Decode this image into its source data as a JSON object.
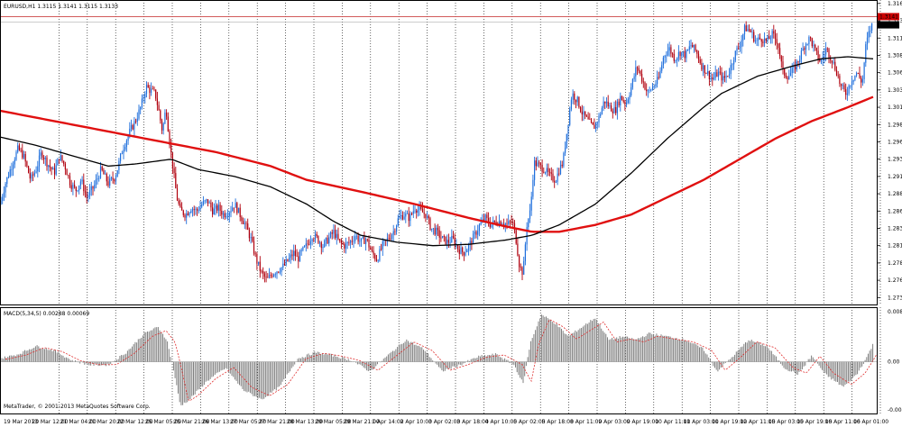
{
  "price_panel": {
    "title": "EURUSD,H1  1.3115 1.3141 1.3115 1.3133",
    "price_ticks": [
      "1.3160",
      "1.3135",
      "1.3110",
      "1.3085",
      "1.3060",
      "1.3035",
      "1.3010",
      "1.2985",
      "1.2960",
      "1.2935",
      "1.2910",
      "1.2885",
      "1.2860",
      "1.2835",
      "1.2810",
      "1.2785",
      "1.2760",
      "1.2735"
    ],
    "price_label_bid": "1.3141",
    "price_label_last": "1.3133",
    "colors": {
      "bull": "#1f6fdc",
      "bear": "#b0000e",
      "ma_fast": "#000000",
      "ma_slow": "#e01010",
      "hline": "#cc4444"
    }
  },
  "macd_panel": {
    "title": "MACD(5,34,5) 0.00288 0.00069",
    "ticks": [
      "0.00867",
      "0.00",
      "-0.00821"
    ],
    "colors": {
      "bars": "#808080",
      "signal": "#e03030"
    }
  },
  "time_axis": {
    "labels": [
      "19 Mar 2013",
      "20 Mar 12:00",
      "21 Mar 04:00",
      "21 Mar 20:00",
      "22 Mar 12:00",
      "25 Mar 05:00",
      "25 Mar 21:00",
      "26 Mar 13:00",
      "27 Mar 05:00",
      "27 Mar 21:00",
      "28 Mar 13:00",
      "29 Mar 05:00",
      "29 Mar 21:00",
      "1 Apr 14:00",
      "2 Apr 10:00",
      "3 Apr 02:00",
      "3 Apr 18:00",
      "4 Apr 10:00",
      "5 Apr 02:00",
      "5 Apr 18:00",
      "8 Apr 11:00",
      "9 Apr 03:00",
      "9 Apr 19:00",
      "10 Apr 11:00",
      "11 Apr 03:00",
      "11 Apr 19:00",
      "12 Apr 11:00",
      "15 Apr 03:00",
      "15 Apr 19:00",
      "16 Apr 11:00",
      "16 Apr 01:00"
    ]
  },
  "footer": {
    "copyright": "MetaTrader, © 2001-2013 MetaQuotes Software Corp."
  },
  "chart_data": [
    {
      "type": "candlestick",
      "symbol": "EURUSD",
      "timeframe": "H1",
      "ylim": [
        1.2725,
        1.3165
      ],
      "close_path": [
        [
          0,
          1.287
        ],
        [
          6,
          1.29
        ],
        [
          14,
          1.293
        ],
        [
          20,
          1.295
        ],
        [
          26,
          1.294
        ],
        [
          34,
          1.2905
        ],
        [
          40,
          1.292
        ],
        [
          46,
          1.2945
        ],
        [
          52,
          1.293
        ],
        [
          60,
          1.2915
        ],
        [
          66,
          1.294
        ],
        [
          72,
          1.2925
        ],
        [
          78,
          1.29
        ],
        [
          84,
          1.289
        ],
        [
          90,
          1.2905
        ],
        [
          96,
          1.288
        ],
        [
          104,
          1.2895
        ],
        [
          112,
          1.292
        ],
        [
          120,
          1.29
        ],
        [
          128,
          1.291
        ],
        [
          136,
          1.295
        ],
        [
          144,
          1.2975
        ],
        [
          150,
          1.299
        ],
        [
          156,
          1.301
        ],
        [
          162,
          1.304
        ],
        [
          166,
          1.3035
        ],
        [
          172,
          1.303
        ],
        [
          176,
          1.3005
        ],
        [
          180,
          1.2975
        ],
        [
          184,
          1.301
        ],
        [
          188,
          1.296
        ],
        [
          192,
          1.292
        ],
        [
          196,
          1.288
        ],
        [
          200,
          1.286
        ],
        [
          206,
          1.2855
        ],
        [
          212,
          1.2865
        ],
        [
          218,
          1.286
        ],
        [
          224,
          1.287
        ],
        [
          230,
          1.2875
        ],
        [
          236,
          1.286
        ],
        [
          242,
          1.2865
        ],
        [
          248,
          1.2855
        ],
        [
          254,
          1.286
        ],
        [
          260,
          1.287
        ],
        [
          266,
          1.2855
        ],
        [
          272,
          1.284
        ],
        [
          278,
          1.282
        ],
        [
          284,
          1.279
        ],
        [
          290,
          1.277
        ],
        [
          296,
          1.276
        ],
        [
          302,
          1.277
        ],
        [
          308,
          1.2775
        ],
        [
          314,
          1.278
        ],
        [
          320,
          1.279
        ],
        [
          326,
          1.28
        ],
        [
          330,
          1.279
        ],
        [
          334,
          1.28
        ],
        [
          340,
          1.281
        ],
        [
          346,
          1.2825
        ],
        [
          352,
          1.282
        ],
        [
          358,
          1.281
        ],
        [
          364,
          1.282
        ],
        [
          370,
          1.283
        ],
        [
          376,
          1.2815
        ],
        [
          382,
          1.281
        ],
        [
          388,
          1.2815
        ],
        [
          394,
          1.2825
        ],
        [
          400,
          1.2815
        ],
        [
          406,
          1.282
        ],
        [
          412,
          1.28
        ],
        [
          418,
          1.279
        ],
        [
          424,
          1.281
        ],
        [
          430,
          1.282
        ],
        [
          436,
          1.283
        ],
        [
          442,
          1.285
        ],
        [
          448,
          1.2855
        ],
        [
          454,
          1.285
        ],
        [
          460,
          1.2865
        ],
        [
          466,
          1.286
        ],
        [
          472,
          1.2855
        ],
        [
          478,
          1.2835
        ],
        [
          484,
          1.283
        ],
        [
          490,
          1.282
        ],
        [
          496,
          1.2815
        ],
        [
          502,
          1.282
        ],
        [
          508,
          1.2805
        ],
        [
          514,
          1.28
        ],
        [
          520,
          1.281
        ],
        [
          526,
          1.2825
        ],
        [
          532,
          1.284
        ],
        [
          538,
          1.285
        ],
        [
          544,
          1.284
        ],
        [
          550,
          1.2845
        ],
        [
          556,
          1.2845
        ],
        [
          562,
          1.284
        ],
        [
          568,
          1.2845
        ],
        [
          572,
          1.282
        ],
        [
          576,
          1.278
        ],
        [
          580,
          1.277
        ],
        [
          584,
          1.284
        ],
        [
          588,
          1.286
        ],
        [
          592,
          1.293
        ],
        [
          598,
          1.2925
        ],
        [
          604,
          1.292
        ],
        [
          610,
          1.291
        ],
        [
          616,
          1.2905
        ],
        [
          620,
          1.292
        ],
        [
          624,
          1.293
        ],
        [
          630,
          1.299
        ],
        [
          634,
          1.303
        ],
        [
          640,
          1.302
        ],
        [
          646,
          1.3
        ],
        [
          652,
          1.299
        ],
        [
          658,
          1.298
        ],
        [
          664,
          1.2995
        ],
        [
          670,
          1.302
        ],
        [
          676,
          1.301
        ],
        [
          682,
          1.3005
        ],
        [
          688,
          1.3025
        ],
        [
          694,
          1.3015
        ],
        [
          700,
          1.304
        ],
        [
          706,
          1.307
        ],
        [
          712,
          1.305
        ],
        [
          718,
          1.303
        ],
        [
          724,
          1.304
        ],
        [
          730,
          1.305
        ],
        [
          736,
          1.3085
        ],
        [
          742,
          1.3095
        ],
        [
          748,
          1.308
        ],
        [
          754,
          1.309
        ],
        [
          760,
          1.3085
        ],
        [
          766,
          1.31
        ],
        [
          772,
          1.309
        ],
        [
          778,
          1.307
        ],
        [
          784,
          1.306
        ],
        [
          790,
          1.305
        ],
        [
          796,
          1.306
        ],
        [
          802,
          1.305
        ],
        [
          808,
          1.306
        ],
        [
          814,
          1.3085
        ],
        [
          820,
          1.31
        ],
        [
          826,
          1.3125
        ],
        [
          832,
          1.312
        ],
        [
          838,
          1.3105
        ],
        [
          844,
          1.311
        ],
        [
          850,
          1.3105
        ],
        [
          856,
          1.3115
        ],
        [
          862,
          1.3105
        ],
        [
          868,
          1.306
        ],
        [
          874,
          1.3055
        ],
        [
          880,
          1.3065
        ],
        [
          886,
          1.308
        ],
        [
          892,
          1.31
        ],
        [
          898,
          1.311
        ],
        [
          904,
          1.309
        ],
        [
          910,
          1.3075
        ],
        [
          916,
          1.3095
        ],
        [
          922,
          1.308
        ],
        [
          928,
          1.306
        ],
        [
          932,
          1.304
        ],
        [
          938,
          1.303
        ],
        [
          944,
          1.305
        ],
        [
          950,
          1.306
        ],
        [
          956,
          1.3045
        ],
        [
          960,
          1.31
        ],
        [
          964,
          1.312
        ],
        [
          968,
          1.3133
        ]
      ],
      "ma_fast": [
        [
          0,
          1.2967
        ],
        [
          40,
          1.2955
        ],
        [
          80,
          1.294
        ],
        [
          120,
          1.2925
        ],
        [
          150,
          1.2928
        ],
        [
          190,
          1.2935
        ],
        [
          220,
          1.292
        ],
        [
          260,
          1.291
        ],
        [
          300,
          1.2895
        ],
        [
          340,
          1.287
        ],
        [
          370,
          1.2845
        ],
        [
          400,
          1.2825
        ],
        [
          440,
          1.2815
        ],
        [
          480,
          1.281
        ],
        [
          520,
          1.2812
        ],
        [
          560,
          1.2818
        ],
        [
          590,
          1.2825
        ],
        [
          620,
          1.284
        ],
        [
          660,
          1.287
        ],
        [
          700,
          1.2915
        ],
        [
          740,
          1.2965
        ],
        [
          780,
          1.301
        ],
        [
          800,
          1.303
        ],
        [
          840,
          1.3055
        ],
        [
          880,
          1.307
        ],
        [
          910,
          1.308
        ],
        [
          940,
          1.3083
        ],
        [
          968,
          1.308
        ]
      ],
      "ma_slow": [
        [
          0,
          1.3005
        ],
        [
          60,
          1.299
        ],
        [
          120,
          1.2975
        ],
        [
          180,
          1.296
        ],
        [
          240,
          1.2945
        ],
        [
          300,
          1.2925
        ],
        [
          340,
          1.2905
        ],
        [
          400,
          1.2888
        ],
        [
          460,
          1.287
        ],
        [
          520,
          1.285
        ],
        [
          560,
          1.2838
        ],
        [
          590,
          1.283
        ],
        [
          620,
          1.283
        ],
        [
          660,
          1.284
        ],
        [
          700,
          1.2855
        ],
        [
          740,
          1.288
        ],
        [
          780,
          1.2905
        ],
        [
          820,
          1.2935
        ],
        [
          860,
          1.2965
        ],
        [
          900,
          1.299
        ],
        [
          940,
          1.301
        ],
        [
          968,
          1.3025
        ]
      ]
    },
    {
      "type": "histogram",
      "name": "MACD(5,34,5)",
      "ylim": [
        -0.00821,
        0.00867
      ],
      "profile": [
        [
          0,
          0.0005
        ],
        [
          20,
          0.0012
        ],
        [
          40,
          0.0025
        ],
        [
          60,
          0.0018
        ],
        [
          80,
          0.0002
        ],
        [
          100,
          -0.0005
        ],
        [
          120,
          -0.0005
        ],
        [
          140,
          0.0015
        ],
        [
          160,
          0.0045
        ],
        [
          175,
          0.0055
        ],
        [
          185,
          0.0035
        ],
        [
          192,
          -0.001
        ],
        [
          200,
          -0.007
        ],
        [
          210,
          -0.006
        ],
        [
          230,
          -0.003
        ],
        [
          250,
          -0.001
        ],
        [
          270,
          -0.0045
        ],
        [
          290,
          -0.006
        ],
        [
          310,
          -0.004
        ],
        [
          330,
          0.0005
        ],
        [
          350,
          0.0015
        ],
        [
          370,
          0.001
        ],
        [
          390,
          0.0002
        ],
        [
          410,
          -0.0015
        ],
        [
          430,
          0.001
        ],
        [
          450,
          0.0035
        ],
        [
          470,
          0.002
        ],
        [
          490,
          -0.0015
        ],
        [
          510,
          -0.0005
        ],
        [
          530,
          0.0008
        ],
        [
          550,
          0.0012
        ],
        [
          570,
          -0.0005
        ],
        [
          580,
          -0.0035
        ],
        [
          588,
          0.003
        ],
        [
          600,
          0.0075
        ],
        [
          615,
          0.0062
        ],
        [
          630,
          0.004
        ],
        [
          645,
          0.0055
        ],
        [
          660,
          0.007
        ],
        [
          675,
          0.0035
        ],
        [
          690,
          0.004
        ],
        [
          705,
          0.0035
        ],
        [
          720,
          0.0045
        ],
        [
          740,
          0.004
        ],
        [
          760,
          0.0035
        ],
        [
          780,
          0.002
        ],
        [
          795,
          -0.0015
        ],
        [
          810,
          0.0005
        ],
        [
          830,
          0.0035
        ],
        [
          850,
          0.0025
        ],
        [
          870,
          -0.001
        ],
        [
          885,
          -0.002
        ],
        [
          900,
          0.001
        ],
        [
          915,
          -0.002
        ],
        [
          935,
          -0.004
        ],
        [
          950,
          -0.002
        ],
        [
          960,
          0.0005
        ],
        [
          968,
          0.0028
        ]
      ]
    }
  ]
}
